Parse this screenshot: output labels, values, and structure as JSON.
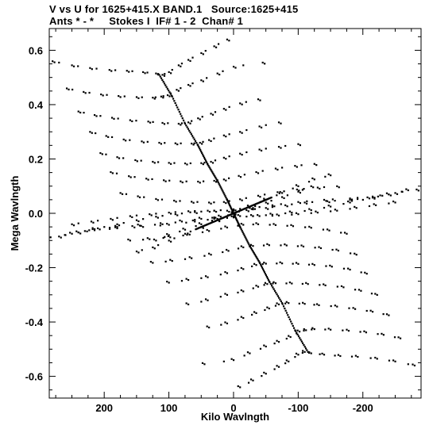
{
  "header": {
    "title": "V vs U for 1625+415.X BAND.1   Source:1625+415",
    "subtitle": "Ants * - *     Stokes I  IF# 1 - 2  Chan# 1"
  },
  "chart_data": {
    "type": "scatter",
    "title": "V vs U for 1625+415.X BAND.1   Source:1625+415",
    "subtitle": "Ants * - *     Stokes I  IF# 1 - 2  Chan# 1",
    "xlabel": "Kilo Wavlngth",
    "ylabel": "Mega Wavlngth",
    "x_units": "kilo-wavelengths",
    "y_units": "mega-wavelengths",
    "xlim": [
      285,
      -290
    ],
    "ylim": [
      -0.68,
      0.68
    ],
    "x_reversed": true,
    "x_ticks": [
      200,
      100,
      0,
      -100,
      -200
    ],
    "x_tick_labels": [
      "200",
      "100",
      "0",
      "-100",
      "-200"
    ],
    "y_ticks": [
      0.6,
      0.4,
      0.2,
      0.0,
      -0.2,
      -0.4,
      -0.6
    ],
    "y_tick_labels": [
      "0.6",
      "0.4",
      "0.2",
      "0.0",
      "-0.2",
      "-0.4",
      "-0.6"
    ],
    "grid": false,
    "marker": "dot",
    "series": [
      {
        "description_tracks": "Each track is a baseline arc; points listed as [u_kilo_wavelengths, v_mega_wavelengths]. Conjugate points (-u, -v) are also plotted.",
        "tracks": [
          [
            [
              280,
              0.56
            ],
            [
              250,
              0.545
            ],
            [
              222,
              0.535
            ],
            [
              192,
              0.528
            ],
            [
              165,
              0.525
            ],
            [
              140,
              0.52
            ],
            [
              120,
              0.515
            ],
            [
              110,
              0.51
            ],
            [
              100,
              0.52
            ],
            [
              85,
              0.545
            ],
            [
              70,
              0.565
            ],
            [
              50,
              0.59
            ],
            [
              30,
              0.615
            ],
            [
              10,
              0.64
            ]
          ],
          [
            [
              258,
              0.46
            ],
            [
              232,
              0.447
            ],
            [
              205,
              0.438
            ],
            [
              178,
              0.432
            ],
            [
              150,
              0.428
            ],
            [
              125,
              0.426
            ],
            [
              112,
              0.43
            ],
            [
              102,
              0.435
            ],
            [
              88,
              0.455
            ],
            [
              70,
              0.473
            ],
            [
              50,
              0.49
            ],
            [
              25,
              0.515
            ],
            [
              0,
              0.54
            ],
            [
              -45,
              0.555
            ]
          ],
          [
            [
              240,
              0.375
            ],
            [
              215,
              0.362
            ],
            [
              188,
              0.352
            ],
            [
              160,
              0.343
            ],
            [
              132,
              0.338
            ],
            [
              110,
              0.333
            ],
            [
              85,
              0.33
            ],
            [
              70,
              0.335
            ],
            [
              55,
              0.35
            ],
            [
              35,
              0.367
            ],
            [
              15,
              0.385
            ],
            [
              -10,
              0.405
            ],
            [
              -38,
              0.42
            ]
          ],
          [
            [
              222,
              0.3
            ],
            [
              197,
              0.285
            ],
            [
              170,
              0.272
            ],
            [
              142,
              0.265
            ],
            [
              115,
              0.26
            ],
            [
              90,
              0.258
            ],
            [
              65,
              0.257
            ],
            [
              52,
              0.26
            ],
            [
              38,
              0.27
            ],
            [
              15,
              0.287
            ],
            [
              -10,
              0.3
            ],
            [
              -40,
              0.32
            ],
            [
              -70,
              0.335
            ]
          ],
          [
            [
              206,
              0.222
            ],
            [
              180,
              0.207
            ],
            [
              152,
              0.196
            ],
            [
              125,
              0.19
            ],
            [
              100,
              0.186
            ],
            [
              75,
              0.184
            ],
            [
              50,
              0.185
            ],
            [
              35,
              0.19
            ],
            [
              15,
              0.205
            ],
            [
              -10,
              0.22
            ],
            [
              -40,
              0.235
            ],
            [
              -70,
              0.245
            ],
            [
              -100,
              0.255
            ]
          ],
          [
            [
              190,
              0.152
            ],
            [
              162,
              0.137
            ],
            [
              135,
              0.128
            ],
            [
              108,
              0.122
            ],
            [
              82,
              0.118
            ],
            [
              55,
              0.117
            ],
            [
              30,
              0.12
            ],
            [
              15,
              0.125
            ],
            [
              -8,
              0.138
            ],
            [
              -35,
              0.152
            ],
            [
              -65,
              0.165
            ],
            [
              -95,
              0.175
            ],
            [
              -125,
              0.182
            ]
          ],
          [
            [
              175,
              0.075
            ],
            [
              148,
              0.063
            ],
            [
              120,
              0.053
            ],
            [
              92,
              0.047
            ],
            [
              65,
              0.043
            ],
            [
              38,
              0.04
            ],
            [
              15,
              0.042
            ],
            [
              -10,
              0.052
            ],
            [
              -38,
              0.065
            ],
            [
              -68,
              0.078
            ],
            [
              -98,
              0.088
            ],
            [
              -130,
              0.095
            ],
            [
              -160,
              0.1
            ]
          ],
          [
            [
              270,
              -0.085
            ],
            [
              240,
              -0.07
            ],
            [
              210,
              -0.055
            ],
            [
              180,
              -0.04
            ],
            [
              150,
              -0.025
            ],
            [
              120,
              -0.012
            ],
            [
              90,
              -0.003
            ],
            [
              60,
              0.005
            ],
            [
              30,
              0.01
            ],
            [
              0,
              0.015
            ],
            [
              -30,
              0.02
            ],
            [
              -60,
              0.03
            ],
            [
              -100,
              0.042
            ],
            [
              -140,
              0.05
            ],
            [
              -180,
              0.055
            ],
            [
              -215,
              0.062
            ],
            [
              -250,
              0.075
            ],
            [
              -283,
              0.088
            ]
          ],
          [
            [
              250,
              -0.04
            ],
            [
              220,
              -0.03
            ],
            [
              190,
              -0.02
            ],
            [
              160,
              -0.01
            ],
            [
              130,
              -0.003
            ],
            [
              100,
              0.003
            ],
            [
              70,
              0.008
            ],
            [
              40,
              0.01
            ],
            [
              10,
              0.01
            ],
            [
              -20,
              0.012
            ],
            [
              -50,
              0.02
            ],
            [
              -80,
              0.03
            ],
            [
              -110,
              0.04
            ],
            [
              -145,
              0.045
            ],
            [
              -180,
              0.05
            ],
            [
              -215,
              0.058
            ],
            [
              -240,
              0.07
            ]
          ],
          [
            [
              150,
              -0.14
            ],
            [
              125,
              -0.125
            ],
            [
              100,
              -0.1
            ],
            [
              75,
              -0.075
            ],
            [
              50,
              -0.05
            ],
            [
              25,
              -0.025
            ],
            [
              0,
              0.0
            ],
            [
              -25,
              0.02
            ],
            [
              -50,
              0.04
            ],
            [
              -75,
              0.06
            ],
            [
              -100,
              0.08
            ],
            [
              -120,
              0.1
            ]
          ]
        ]
      }
    ]
  }
}
